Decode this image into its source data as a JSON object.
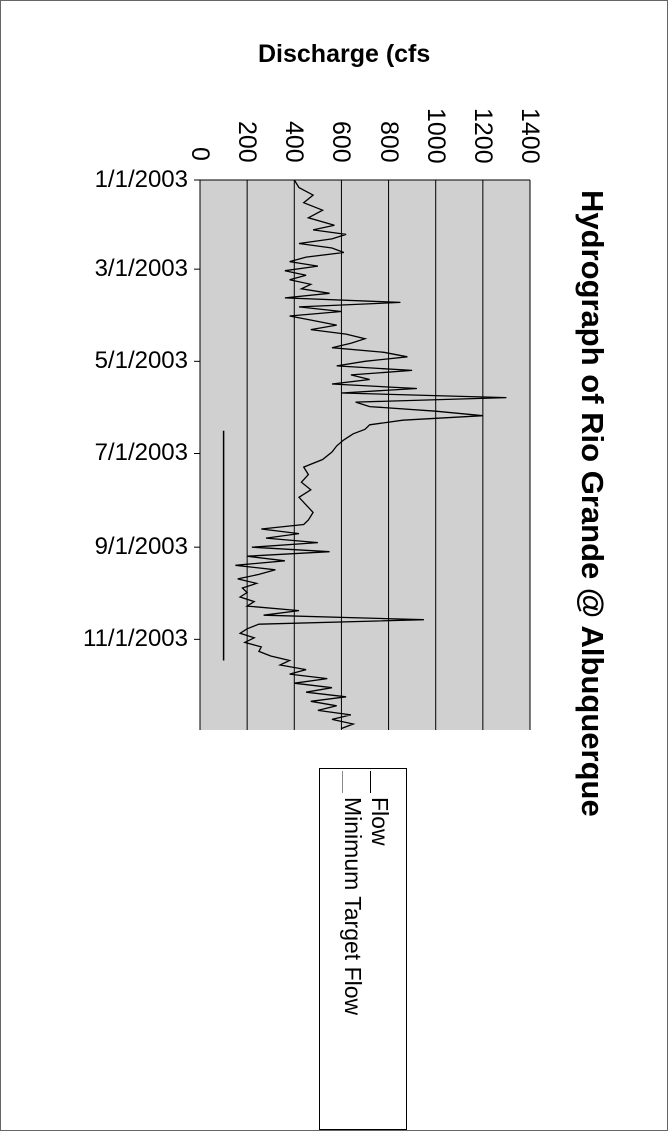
{
  "chart_data": {
    "type": "line",
    "title": "Hydrograph of Rio Grande @ Albuquerque",
    "ylabel": "Discharge (cfs",
    "xlabel": "",
    "y_ticks": [
      "0",
      "200",
      "400",
      "600",
      "800",
      "1000",
      "1200",
      "1400"
    ],
    "ylim": [
      0,
      1400
    ],
    "x_ticks": [
      "1/1/2003",
      "3/1/2003",
      "5/1/2003",
      "7/1/2003",
      "9/1/2003",
      "11/1/2003"
    ],
    "x_tick_days": [
      0,
      59,
      120,
      181,
      243,
      304
    ],
    "xlim_days": [
      0,
      364
    ],
    "x_start": "1/1/2003",
    "orientation": "rotated-90-clockwise",
    "grid": true,
    "legend": "bottom",
    "plot_background": "#d0d0d0",
    "series": [
      {
        "name": "Flow",
        "color": "#000000",
        "x": [
          0,
          5,
          10,
          15,
          20,
          25,
          30,
          33,
          36,
          39,
          42,
          45,
          48,
          51,
          54,
          57,
          60,
          63,
          66,
          69,
          72,
          75,
          78,
          81,
          84,
          87,
          90,
          93,
          96,
          99,
          102,
          105,
          108,
          111,
          114,
          117,
          120,
          123,
          126,
          129,
          132,
          135,
          138,
          141,
          144,
          147,
          150,
          153,
          156,
          159,
          162,
          165,
          168,
          172,
          176,
          180,
          185,
          190,
          195,
          200,
          205,
          210,
          215,
          220,
          225,
          228,
          231,
          234,
          237,
          240,
          243,
          246,
          249,
          252,
          255,
          258,
          261,
          264,
          267,
          270,
          273,
          276,
          279,
          282,
          285,
          288,
          291,
          294,
          297,
          300,
          303,
          306,
          309,
          312,
          315,
          318,
          321,
          324,
          327,
          330,
          333,
          336,
          339,
          342,
          345,
          348,
          351,
          354,
          357,
          360,
          363
        ],
        "values": [
          400,
          420,
          480,
          440,
          520,
          460,
          570,
          480,
          620,
          560,
          420,
          560,
          610,
          450,
          380,
          500,
          360,
          450,
          380,
          470,
          430,
          550,
          360,
          850,
          420,
          600,
          380,
          480,
          580,
          470,
          620,
          700,
          640,
          560,
          780,
          880,
          700,
          580,
          900,
          640,
          720,
          560,
          920,
          600,
          1300,
          660,
          720,
          1000,
          1200,
          860,
          720,
          700,
          650,
          610,
          580,
          560,
          520,
          440,
          460,
          430,
          470,
          420,
          450,
          480,
          460,
          440,
          260,
          420,
          280,
          500,
          220,
          550,
          200,
          360,
          150,
          320,
          250,
          160,
          240,
          180,
          200,
          170,
          230,
          200,
          420,
          270,
          950,
          250,
          200,
          170,
          230,
          190,
          260,
          250,
          300,
          380,
          340,
          450,
          380,
          540,
          400,
          560,
          450,
          620,
          470,
          580,
          500,
          640,
          560,
          650,
          600
        ],
        "values_note": "approximate"
      },
      {
        "name": "Minimum Target Flow",
        "color": "#000000",
        "x": [
          166,
          318
        ],
        "values": [
          100,
          100
        ]
      }
    ]
  }
}
